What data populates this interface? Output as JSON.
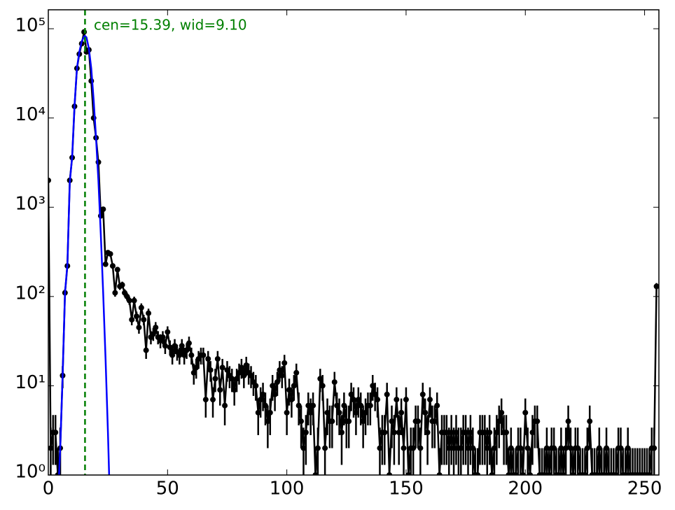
{
  "chart_data": {
    "type": "errorbar-log",
    "annotation": "cen=15.39, wid=9.10",
    "vline_x": 15.39,
    "vline_color": "#007f00",
    "xlim": [
      0,
      256
    ],
    "ylim": [
      1,
      163000
    ],
    "log_y": true,
    "xticks": [
      0,
      50,
      100,
      150,
      200,
      250
    ],
    "yticks": [
      {
        "value": 1,
        "label": "10⁰"
      },
      {
        "value": 10,
        "label": "10¹"
      },
      {
        "value": 100,
        "label": "10²"
      },
      {
        "value": 1000,
        "label": "10³"
      },
      {
        "value": 10000,
        "label": "10⁴"
      },
      {
        "value": 100000,
        "label": "10⁵"
      }
    ],
    "series": [
      {
        "color": "#000000",
        "x": [
          0,
          1,
          2,
          3,
          4,
          5,
          6,
          7,
          8,
          9,
          10,
          11,
          12,
          13,
          14,
          15,
          16,
          17,
          18,
          19,
          20,
          21,
          22,
          23,
          24,
          25,
          26,
          27,
          28,
          29,
          30,
          31,
          32,
          33,
          34,
          35,
          36,
          37,
          38,
          39,
          40,
          41,
          42,
          43,
          44,
          45,
          46,
          47,
          48,
          49,
          50,
          51,
          52,
          53,
          54,
          55,
          56,
          57,
          58,
          59,
          60,
          61,
          62,
          63,
          64,
          65,
          66,
          67,
          68,
          69,
          70,
          71,
          72,
          73,
          74,
          75,
          76,
          77,
          78,
          79,
          80,
          81,
          82,
          83,
          84,
          85,
          86,
          87,
          88,
          89,
          90,
          91,
          92,
          93,
          94,
          95,
          96,
          97,
          98,
          99,
          100,
          101,
          102,
          103,
          104,
          105,
          106,
          107,
          108,
          109,
          110,
          111,
          112,
          113,
          114,
          115,
          116,
          117,
          118,
          119,
          120,
          121,
          122,
          123,
          124,
          125,
          126,
          127,
          128,
          129,
          130,
          131,
          132,
          133,
          134,
          135,
          136,
          137,
          138,
          139,
          140,
          141,
          142,
          143,
          144,
          145,
          146,
          147,
          148,
          149,
          150,
          151,
          152,
          153,
          154,
          155,
          156,
          157,
          158,
          159,
          160,
          161,
          162,
          163,
          164,
          165,
          166,
          167,
          168,
          169,
          170,
          171,
          172,
          173,
          174,
          175,
          176,
          177,
          178,
          179,
          180,
          181,
          182,
          183,
          184,
          185,
          186,
          187,
          188,
          189,
          190,
          191,
          192,
          193,
          194,
          195,
          196,
          197,
          198,
          199,
          200,
          201,
          202,
          203,
          204,
          205,
          206,
          207,
          208,
          209,
          210,
          211,
          212,
          213,
          214,
          215,
          216,
          217,
          218,
          219,
          220,
          221,
          222,
          223,
          224,
          225,
          226,
          227,
          228,
          229,
          230,
          231,
          232,
          233,
          234,
          235,
          236,
          237,
          238,
          239,
          240,
          241,
          242,
          243,
          244,
          245,
          246,
          247,
          248,
          249,
          250,
          251,
          252,
          253,
          254,
          255
        ],
        "values": [
          2000,
          2,
          3,
          3,
          1,
          2,
          13,
          110,
          220,
          2000,
          3600,
          13500,
          36000,
          52000,
          68000,
          92000,
          55000,
          58000,
          26000,
          10000,
          6000,
          3200,
          800,
          950,
          230,
          310,
          300,
          220,
          110,
          200,
          130,
          135,
          110,
          100,
          90,
          55,
          90,
          60,
          45,
          75,
          55,
          25,
          65,
          35,
          38,
          45,
          35,
          32,
          35,
          28,
          40,
          27,
          22,
          28,
          24,
          22,
          28,
          22,
          25,
          30,
          22,
          14,
          16,
          20,
          22,
          22,
          7,
          20,
          15,
          7,
          12,
          20,
          9,
          16,
          6,
          15,
          13,
          12,
          9,
          12,
          14,
          16,
          13,
          17,
          14,
          13,
          11,
          10,
          5,
          7,
          8,
          6,
          4,
          5,
          10,
          8,
          11,
          15,
          13,
          18,
          5,
          9,
          7,
          10,
          14,
          6,
          4,
          2,
          3,
          6,
          5,
          6,
          1,
          2,
          12,
          10,
          2,
          5,
          4,
          4,
          11,
          6,
          5,
          3,
          6,
          4,
          4,
          8,
          7,
          5,
          7,
          6,
          4,
          5,
          6,
          6,
          10,
          8,
          7,
          2,
          3,
          3,
          8,
          1,
          4,
          3,
          7,
          3,
          5,
          2,
          7,
          1,
          2,
          2,
          4,
          4,
          2,
          8,
          5,
          3,
          7,
          4,
          4,
          6,
          1,
          3,
          3,
          3,
          2,
          3,
          2,
          3,
          2,
          2,
          3,
          3,
          2,
          3,
          2,
          1,
          1,
          3,
          3,
          3,
          2,
          3,
          1,
          2,
          3,
          4,
          5,
          3,
          3,
          1,
          2,
          1,
          1,
          2,
          2,
          1,
          5,
          2,
          1,
          3,
          4,
          4,
          1,
          1,
          1,
          2,
          1,
          2,
          2,
          1,
          1,
          2,
          1,
          2,
          4,
          2,
          1,
          2,
          2,
          1,
          1,
          1,
          2,
          4,
          1,
          1,
          1,
          2,
          1,
          1,
          2,
          1,
          1,
          1,
          1,
          2,
          2,
          1,
          1,
          2,
          1,
          1,
          1,
          1,
          1,
          1,
          1,
          1,
          1,
          2,
          2,
          130
        ],
        "errors": [
          45,
          1.4,
          1.7,
          1.7,
          1,
          1.4,
          3.6,
          10.5,
          14.8,
          45,
          60,
          116,
          190,
          228,
          261,
          303,
          235,
          241,
          161,
          100,
          77,
          57,
          28,
          31,
          15.2,
          17.6,
          17.3,
          14.8,
          10.5,
          14.1,
          11.4,
          11.6,
          10.5,
          10,
          9.5,
          7.4,
          9.5,
          7.7,
          6.7,
          8.7,
          7.4,
          5,
          8.1,
          5.9,
          6.2,
          6.7,
          5.9,
          5.7,
          5.9,
          5.3,
          6.3,
          5.2,
          4.7,
          5.3,
          4.9,
          4.7,
          5.3,
          4.7,
          5,
          5.5,
          4.7,
          3.7,
          4,
          4.5,
          4.7,
          4.7,
          2.6,
          4.5,
          3.9,
          2.6,
          3.5,
          4.5,
          3,
          4,
          2.4,
          3.9,
          3.6,
          3.5,
          3,
          3.5,
          3.7,
          4,
          3.6,
          4.1,
          3.7,
          3.6,
          3.3,
          3.2,
          2.2,
          2.6,
          2.8,
          2.4,
          2,
          2.2,
          3.2,
          2.8,
          3.3,
          3.9,
          3.6,
          4.2,
          2.2,
          3,
          2.6,
          3.2,
          3.7,
          2.4,
          2,
          1.4,
          1.7,
          2.4,
          2.2,
          2.4,
          1,
          1.4,
          3.5,
          3.2,
          1.4,
          2.2,
          2,
          2,
          3.3,
          2.4,
          2.2,
          1.7,
          2.4,
          2,
          2,
          2.8,
          2.6,
          2.2,
          2.6,
          2.4,
          2,
          2.2,
          2.4,
          2.4,
          3.2,
          2.8,
          2.6,
          1.4,
          1.7,
          1.7,
          2.8,
          1,
          2,
          1.7,
          2.6,
          1.7,
          2.2,
          1.4,
          2.6,
          1,
          1.4,
          1.4,
          2,
          2,
          1.4,
          2.8,
          2.2,
          1.7,
          2.6,
          2,
          2,
          2.4,
          1,
          1.7,
          1.7,
          1.7,
          1.4,
          1.7,
          1.4,
          1.7,
          1.4,
          1.4,
          1.7,
          1.7,
          1.4,
          1.7,
          1.4,
          1,
          1,
          1.7,
          1.7,
          1.7,
          1.4,
          1.7,
          1,
          1.4,
          1.7,
          2,
          2.2,
          1.7,
          1.7,
          1,
          1.4,
          1,
          1,
          1.4,
          1.4,
          1,
          2.2,
          1.4,
          1,
          1.7,
          2,
          2,
          1,
          1,
          1,
          1.4,
          1,
          1.4,
          1.4,
          1,
          1,
          1.4,
          1,
          1.4,
          2,
          1.4,
          1,
          1.4,
          1.4,
          1,
          1,
          1,
          1.4,
          2,
          1,
          1,
          1,
          1.4,
          1,
          1,
          1.4,
          1,
          1,
          1,
          1,
          1.4,
          1.4,
          1,
          1,
          1.4,
          1,
          1,
          1,
          1,
          1,
          1,
          1,
          1,
          1,
          1.4,
          1.4,
          11.4
        ]
      },
      {
        "color": "#0000ff",
        "x": [
          4.5,
          5,
          6,
          7,
          8,
          9,
          10,
          11,
          12,
          13,
          14,
          15,
          15.39,
          16,
          17,
          18,
          19,
          20,
          21,
          22,
          23,
          24,
          25,
          25.5
        ],
        "values": [
          1,
          2,
          13,
          110,
          230,
          1900,
          3700,
          14000,
          36000,
          55000,
          72000,
          82000,
          83000,
          80000,
          60000,
          36000,
          16000,
          6000,
          2000,
          500,
          110,
          20,
          3,
          1
        ]
      }
    ]
  }
}
